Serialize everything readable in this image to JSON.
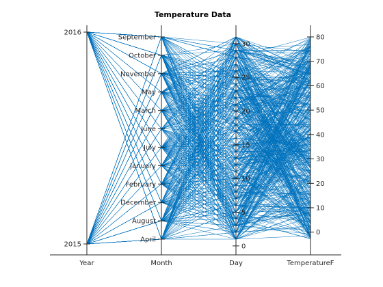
{
  "chart_data": {
    "type": "parallel-coordinates",
    "title": "Temperature Data",
    "color": "#0072bd",
    "axes": [
      {
        "name": "Year",
        "kind": "categorical",
        "categories": [
          "2015",
          "2016"
        ]
      },
      {
        "name": "Month",
        "kind": "categorical",
        "categories": [
          "April",
          "August",
          "December",
          "February",
          "January",
          "July",
          "June",
          "March",
          "May",
          "November",
          "October",
          "September"
        ]
      },
      {
        "name": "Day",
        "kind": "numeric",
        "range": [
          1,
          31
        ],
        "ticks": [
          0,
          5,
          10,
          15,
          20,
          25,
          30
        ]
      },
      {
        "name": "TemperatureF",
        "kind": "numeric",
        "range": [
          -6,
          80
        ],
        "ticks": [
          0,
          10,
          20,
          30,
          40,
          50,
          60,
          70,
          80
        ]
      }
    ],
    "series_count": 565
  }
}
